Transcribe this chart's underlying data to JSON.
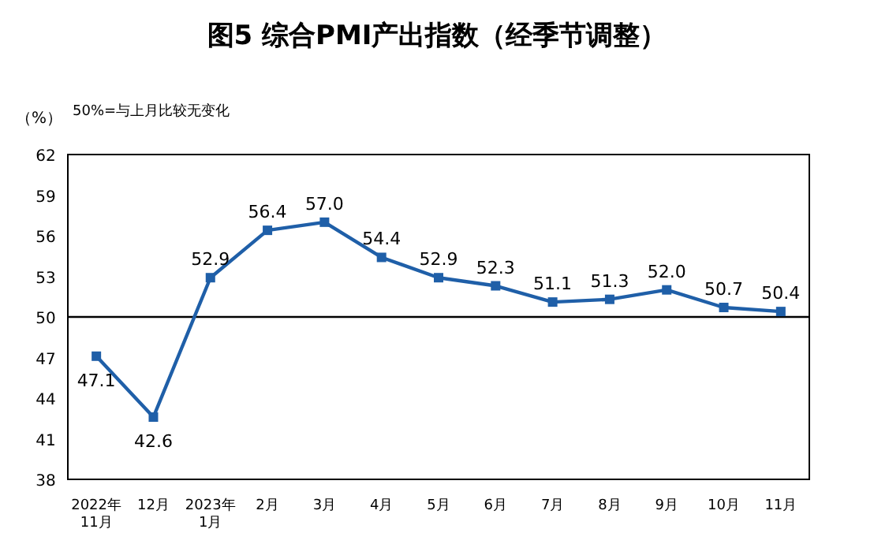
{
  "chart_data": {
    "type": "line",
    "title": "图5  综合PMI产出指数（经季节调整）",
    "ylabel": "（%）",
    "annotations": [
      "50%=与上月比较无变化"
    ],
    "categories": [
      "2022年\n11月",
      "12月",
      "2023年\n1月",
      "2月",
      "3月",
      "4月",
      "5月",
      "6月",
      "7月",
      "8月",
      "9月",
      "10月",
      "11月"
    ],
    "series": [
      {
        "color": "#1f5fa8",
        "values": [
          47.1,
          42.6,
          52.9,
          56.4,
          57.0,
          54.4,
          52.9,
          52.3,
          51.1,
          51.3,
          52.0,
          50.7,
          50.4
        ],
        "value_labels": [
          "47.1",
          "42.6",
          "52.9",
          "56.4",
          "57.0",
          "54.4",
          "52.9",
          "52.3",
          "51.1",
          "51.3",
          "52.0",
          "50.7",
          "50.4"
        ]
      }
    ],
    "ylim": [
      38,
      62
    ],
    "yticks": [
      38,
      41,
      44,
      47,
      50,
      53,
      56,
      59,
      62
    ],
    "ref_lines": [
      {
        "axis": "y",
        "value": 50,
        "color": "#000000"
      }
    ],
    "marker": "square",
    "grid": false
  }
}
